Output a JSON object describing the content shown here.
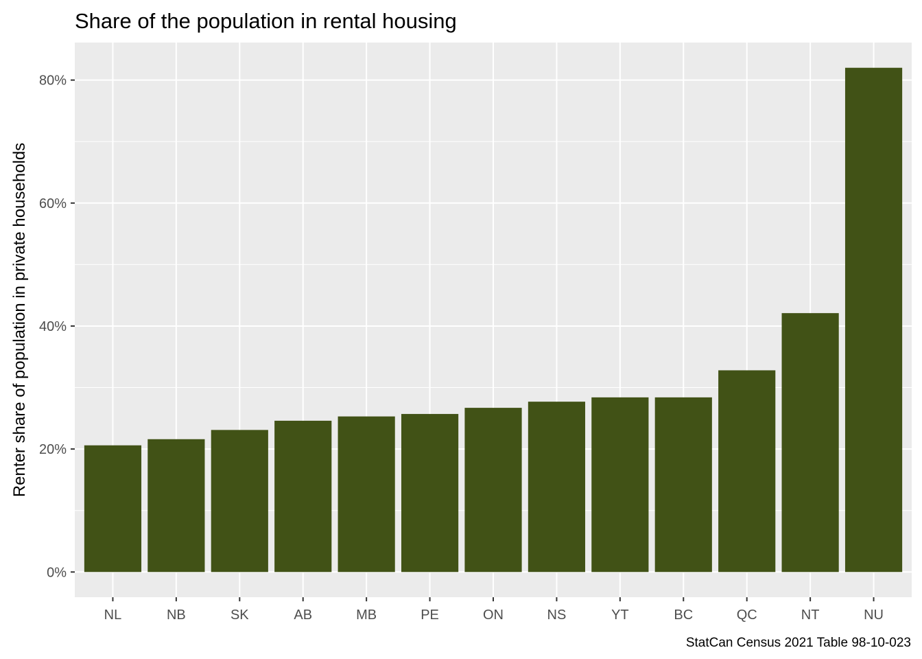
{
  "chart_data": {
    "type": "bar",
    "title": "Share of the population in rental housing",
    "xlabel": "",
    "ylabel": "Renter share of population in private households",
    "caption": "StatCan Census 2021 Table 98-10-023",
    "categories": [
      "NL",
      "NB",
      "SK",
      "AB",
      "MB",
      "PE",
      "ON",
      "NS",
      "YT",
      "BC",
      "QC",
      "NT",
      "NU"
    ],
    "values": [
      20.6,
      21.6,
      23.1,
      24.6,
      25.3,
      25.7,
      26.7,
      27.7,
      28.4,
      28.4,
      32.8,
      42.1,
      82.0
    ],
    "value_unit": "percent",
    "ylim": [
      -4.1,
      86.1
    ],
    "yticks": [
      0,
      20,
      40,
      60,
      80
    ],
    "ytick_labels": [
      "0%",
      "20%",
      "40%",
      "60%",
      "80%"
    ],
    "grid": true,
    "legend": "none",
    "colors": {
      "bar": "#415216",
      "panel": "#ebebeb",
      "grid": "#ffffff",
      "tick": "#333333",
      "tick_label": "#4d4d4d"
    }
  }
}
